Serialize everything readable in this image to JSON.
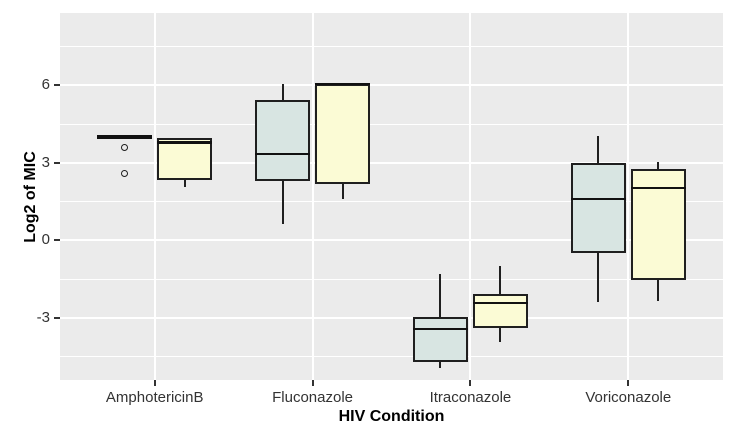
{
  "figure": {
    "background": "#FFFFFF",
    "panel_background": "#EBEBEB",
    "gridline_color": "#FFFFFF",
    "box_border_color": "#1F1F1F",
    "tick_label_color": "#333333",
    "axis_title_color": "#000000"
  },
  "chart_data": {
    "type": "boxplot",
    "title": "",
    "xlabel": "HIV Condition",
    "ylabel": "Log2 of MIC",
    "categories": [
      "AmphotericinB",
      "Fluconazole",
      "Itraconazole",
      "Voriconazole"
    ],
    "y_ticks": [
      6,
      3,
      0,
      -3
    ],
    "y_tick_labels": [
      "6",
      "3",
      "0",
      "-3"
    ],
    "y_minor_ticks": [
      7.5,
      4.5,
      1.5,
      -1.5,
      -4.5
    ],
    "ylim": [
      -5.4,
      8.8
    ],
    "grid": true,
    "legend_position": "none",
    "series": [
      {
        "name": "light-blue-box",
        "fill": "#D8E5E2",
        "boxes": [
          {
            "category": "AmphotericinB",
            "lo": 4,
            "q1": 4,
            "median": 4,
            "q3": 4,
            "hi": 4,
            "outliers": [
              3.6,
              2.6
            ]
          },
          {
            "category": "Fluconazole",
            "lo": 0.65,
            "q1": 2.3,
            "median": 3.35,
            "q3": 5.45,
            "hi": 6.05,
            "outliers": []
          },
          {
            "category": "Itraconazole",
            "lo": -4.92,
            "q1": -4.72,
            "median": -3.42,
            "q3": -2.95,
            "hi": -1.3,
            "outliers": []
          },
          {
            "category": "Voriconazole",
            "lo": -2.4,
            "q1": -0.47,
            "median": 1.6,
            "q3": 3.0,
            "hi": 4.05,
            "outliers": []
          }
        ]
      },
      {
        "name": "light-yellow-box",
        "fill": "#FBFBD5",
        "boxes": [
          {
            "category": "AmphotericinB",
            "lo": 2.05,
            "q1": 2.33,
            "median": 3.78,
            "q3": 3.97,
            "hi": 3.97,
            "outliers": []
          },
          {
            "category": "Fluconazole",
            "lo": 1.62,
            "q1": 2.2,
            "median": 6.05,
            "q3": 6.05,
            "hi": 6.05,
            "outliers": []
          },
          {
            "category": "Itraconazole",
            "lo": -3.92,
            "q1": -3.38,
            "median": -2.42,
            "q3": -2.08,
            "hi": -0.98,
            "outliers": []
          },
          {
            "category": "Voriconazole",
            "lo": -2.33,
            "q1": -1.55,
            "median": 2.02,
            "q3": 2.78,
            "hi": 3.05,
            "outliers": []
          }
        ]
      }
    ]
  }
}
